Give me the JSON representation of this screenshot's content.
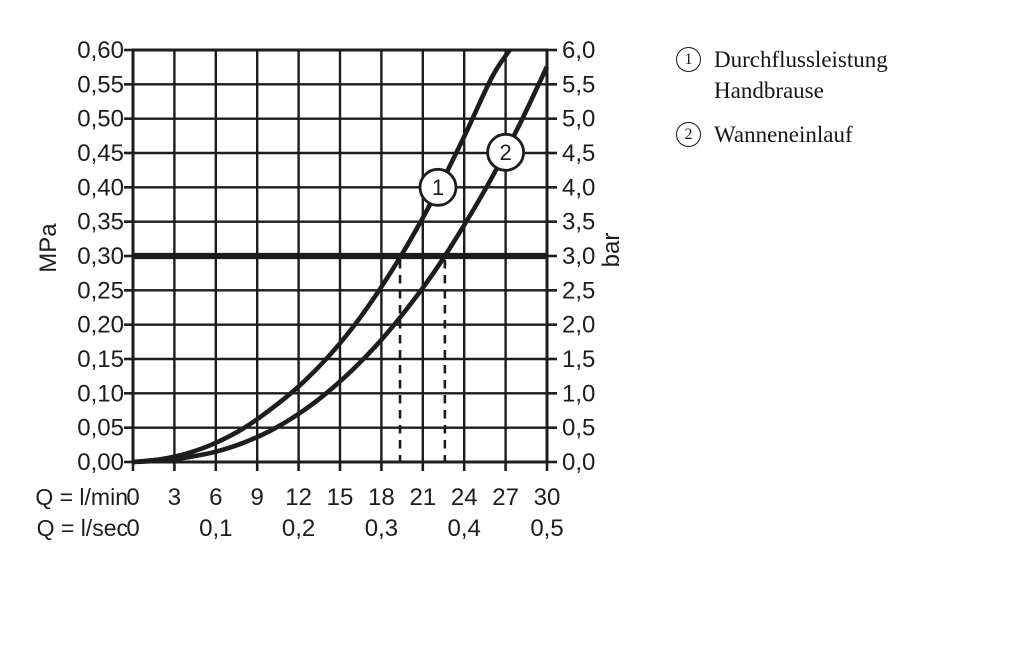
{
  "page": {
    "background": "#ffffff"
  },
  "colors": {
    "ink": "#1d1d1b",
    "plot_background": "#ffffff",
    "marker_fill": "#ffffff"
  },
  "legend": {
    "items": [
      {
        "marker": "1",
        "label": "Durchflussleistung Handbrause"
      },
      {
        "marker": "2",
        "label": "Wanneneinlauf"
      }
    ]
  },
  "chart_data": {
    "type": "line",
    "title": "",
    "grid": "on",
    "x_axis": {
      "primary_label": "Q = l/min",
      "primary_ticks": [
        "0",
        "3",
        "6",
        "9",
        "12",
        "15",
        "18",
        "21",
        "24",
        "27",
        "30"
      ],
      "secondary_label": "Q = l/sec",
      "secondary_ticks": [
        {
          "text": "0",
          "lmin": 0
        },
        {
          "text": "0,1",
          "lmin": 6
        },
        {
          "text": "0,2",
          "lmin": 12
        },
        {
          "text": "0,3",
          "lmin": 18
        },
        {
          "text": "0,4",
          "lmin": 24
        },
        {
          "text": "0,5",
          "lmin": 30
        }
      ],
      "range_lmin": [
        0,
        30
      ],
      "grid_step_lmin": 3
    },
    "y_axis_left": {
      "unit": "MPa",
      "ticks": [
        "0,00",
        "0,05",
        "0,10",
        "0,15",
        "0,20",
        "0,25",
        "0,30",
        "0,35",
        "0,40",
        "0,45",
        "0,50",
        "0,55",
        "0,60"
      ],
      "range_mpa": [
        0,
        0.6
      ],
      "grid_step_mpa": 0.05
    },
    "y_axis_right": {
      "unit": "bar",
      "ticks": [
        "0,0",
        "0,5",
        "1,0",
        "1,5",
        "2,0",
        "2,5",
        "3,0",
        "3,5",
        "4,0",
        "4,5",
        "5,0",
        "5,5",
        "6,0"
      ],
      "range_bar": [
        0,
        6
      ]
    },
    "reference_line": {
      "mpa": 0.3,
      "bar": 3.0
    },
    "guide_lines_lmin": [
      19.35,
      22.6
    ],
    "series": [
      {
        "id": "1",
        "name": "Durchflussleistung Handbrause",
        "marker": {
          "label": "1",
          "lmin": 22.1,
          "mpa": 0.4
        },
        "flow_at_3bar_lmin": 19.35,
        "points_lmin_mpa": [
          [
            0,
            0
          ],
          [
            2,
            0.004
          ],
          [
            4,
            0.013
          ],
          [
            6,
            0.028
          ],
          [
            8,
            0.049
          ],
          [
            10,
            0.077
          ],
          [
            12,
            0.11
          ],
          [
            14,
            0.15
          ],
          [
            16,
            0.198
          ],
          [
            18,
            0.255
          ],
          [
            20,
            0.32
          ],
          [
            22,
            0.393
          ],
          [
            24,
            0.474
          ],
          [
            26,
            0.56
          ],
          [
            27.3,
            0.6
          ]
        ]
      },
      {
        "id": "2",
        "name": "Wanneneinlauf",
        "marker": {
          "label": "2",
          "lmin": 27.0,
          "mpa": 0.451
        },
        "flow_at_3bar_lmin": 22.6,
        "points_lmin_mpa": [
          [
            0,
            0
          ],
          [
            2,
            0.002
          ],
          [
            4,
            0.007
          ],
          [
            6,
            0.015
          ],
          [
            8,
            0.028
          ],
          [
            10,
            0.046
          ],
          [
            12,
            0.07
          ],
          [
            14,
            0.1
          ],
          [
            16,
            0.136
          ],
          [
            18,
            0.178
          ],
          [
            20,
            0.227
          ],
          [
            22,
            0.282
          ],
          [
            24,
            0.345
          ],
          [
            26,
            0.414
          ],
          [
            28,
            0.491
          ],
          [
            30,
            0.576
          ]
        ]
      }
    ]
  }
}
